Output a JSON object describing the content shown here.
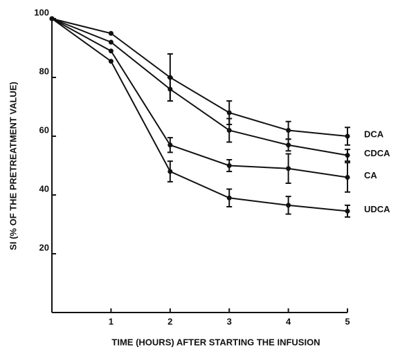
{
  "chart_data": {
    "type": "line",
    "xlabel": "TIME (HOURS) AFTER STARTING THE INFUSION",
    "ylabel": "SI (% OF THE PRETREATMENT VALUE)",
    "x": [
      0,
      1,
      2,
      3,
      4,
      5
    ],
    "xlim": [
      0,
      5
    ],
    "xticks": [
      1,
      2,
      3,
      4,
      5
    ],
    "ylim": [
      0,
      100
    ],
    "yticks": [
      20,
      40,
      60,
      80,
      100
    ],
    "series": [
      {
        "name": "DCA",
        "color": "#111",
        "values": [
          100,
          95,
          80,
          68,
          62,
          60
        ],
        "errors": [
          null,
          null,
          8,
          4,
          3,
          3
        ]
      },
      {
        "name": "CDCA",
        "color": "#111",
        "values": [
          100,
          92,
          76,
          62,
          57,
          53.5
        ],
        "errors": [
          null,
          null,
          4,
          4,
          2,
          2
        ]
      },
      {
        "name": "CA",
        "color": "#111",
        "values": [
          100,
          89,
          57,
          50,
          49,
          46
        ],
        "errors": [
          null,
          null,
          2.5,
          2,
          5,
          5
        ]
      },
      {
        "name": "UDCA",
        "color": "#111",
        "values": [
          100,
          85.5,
          48,
          39,
          36.5,
          34.5
        ],
        "errors": [
          null,
          null,
          3.5,
          3,
          3,
          2
        ]
      }
    ]
  }
}
